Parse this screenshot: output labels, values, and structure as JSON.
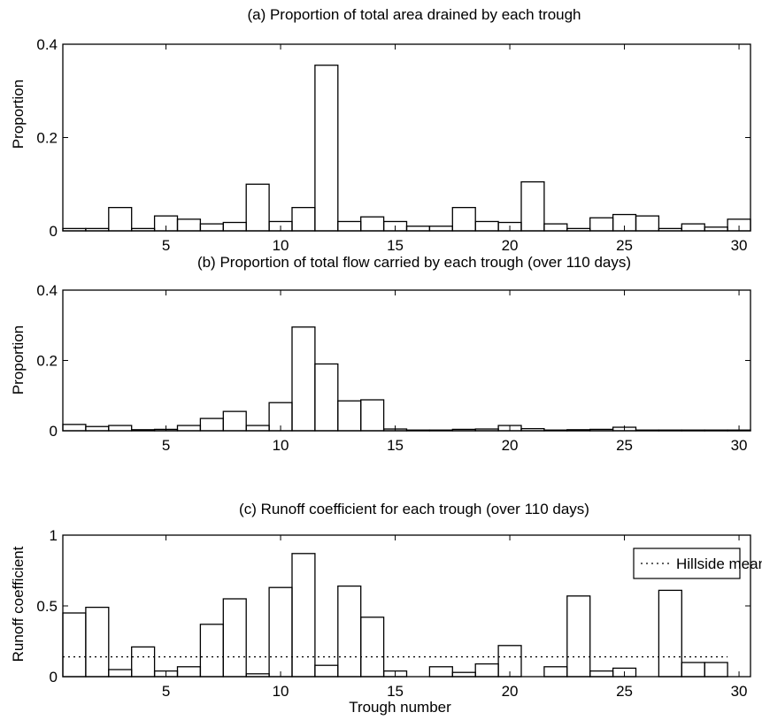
{
  "chart_data": [
    {
      "type": "bar",
      "title": "(a)  Proportion of total area drained by each trough",
      "xlabel": "",
      "ylabel": "Proportion",
      "xlim": [
        0.5,
        30.5
      ],
      "ylim": [
        0,
        0.4
      ],
      "xticks": [
        5,
        10,
        15,
        20,
        25,
        30
      ],
      "yticks": [
        0,
        0.2,
        0.4
      ],
      "ytick_labels": [
        "0",
        "0.2",
        "0.4"
      ],
      "troughs": [
        1,
        2,
        3,
        4,
        5,
        6,
        7,
        8,
        9,
        10,
        11,
        12,
        13,
        14,
        15,
        16,
        17,
        18,
        19,
        20,
        21,
        22,
        23,
        24,
        25,
        26,
        27,
        28,
        29,
        30
      ],
      "values": [
        0.005,
        0.005,
        0.05,
        0.005,
        0.032,
        0.025,
        0.015,
        0.018,
        0.1,
        0.02,
        0.05,
        0.355,
        0.02,
        0.03,
        0.02,
        0.01,
        0.01,
        0.05,
        0.02,
        0.018,
        0.105,
        0.015,
        0.005,
        0.028,
        0.035,
        0.032,
        0.005,
        0.015,
        0.008,
        0.025
      ]
    },
    {
      "type": "bar",
      "title": "(b)  Proportion of total flow carried by each trough (over 110 days)",
      "xlabel": "",
      "ylabel": "Proportion",
      "xlim": [
        0.5,
        30.5
      ],
      "ylim": [
        0,
        0.4
      ],
      "xticks": [
        5,
        10,
        15,
        20,
        25,
        30
      ],
      "yticks": [
        0,
        0.2,
        0.4
      ],
      "ytick_labels": [
        "0",
        "0.2",
        "0.4"
      ],
      "troughs": [
        1,
        2,
        3,
        4,
        5,
        6,
        7,
        8,
        9,
        10,
        11,
        12,
        13,
        14,
        15,
        16,
        17,
        18,
        19,
        20,
        21,
        22,
        23,
        24,
        25,
        26,
        27,
        28,
        29,
        30
      ],
      "values": [
        0.018,
        0.012,
        0.015,
        0.003,
        0.004,
        0.015,
        0.035,
        0.055,
        0.015,
        0.08,
        0.295,
        0.19,
        0.085,
        0.088,
        0.005,
        0.002,
        0.002,
        0.004,
        0.005,
        0.015,
        0.006,
        0.002,
        0.003,
        0.004,
        0.01,
        0.002,
        0.002,
        0.002,
        0.002,
        0.002
      ]
    },
    {
      "type": "bar",
      "title": "(c)  Runoff coefficient for each trough (over 110 days)",
      "xlabel": "Trough number",
      "ylabel": "Runoff coefficient",
      "xlim": [
        0.5,
        30.5
      ],
      "ylim": [
        0,
        1
      ],
      "xticks": [
        5,
        10,
        15,
        20,
        25,
        30
      ],
      "yticks": [
        0,
        0.5,
        1
      ],
      "ytick_labels": [
        "0",
        "0.5",
        "1"
      ],
      "troughs": [
        1,
        2,
        3,
        4,
        5,
        6,
        7,
        8,
        9,
        10,
        11,
        12,
        13,
        14,
        15,
        16,
        17,
        18,
        19,
        20,
        21,
        22,
        23,
        24,
        25,
        26,
        27,
        28,
        29
      ],
      "values": [
        0.45,
        0.49,
        0.05,
        0.21,
        0.04,
        0.07,
        0.37,
        0.55,
        0.02,
        0.63,
        0.87,
        0.08,
        0.64,
        0.42,
        0.04,
        0,
        0.07,
        0.03,
        0.09,
        0.22,
        0,
        0.07,
        0.57,
        0.04,
        0.06,
        0,
        0.61,
        0.1,
        0.1
      ],
      "reference_line": {
        "label": "Hillside mean",
        "value": 0.14
      },
      "legend": {
        "position": "top-right",
        "entries": [
          "Hillside mean"
        ]
      }
    }
  ]
}
